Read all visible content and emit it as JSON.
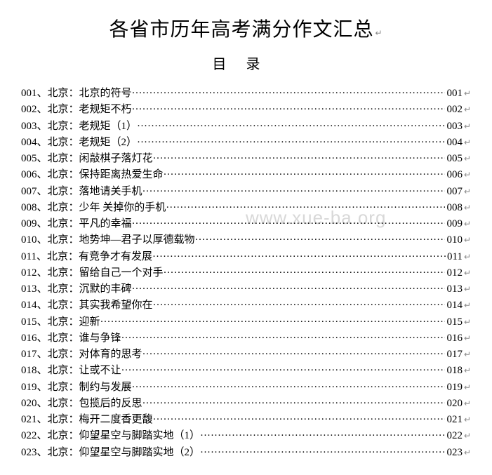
{
  "title": "各省市历年高考满分作文汇总",
  "subtitle": "目录",
  "watermark": "www.xue-ba.org",
  "line_end_mark": "↵",
  "colors": {
    "text": "#000000",
    "background": "#ffffff",
    "watermark": "#d8d8d8"
  },
  "typography": {
    "title_fontsize": 28,
    "subtitle_fontsize": 20,
    "entry_fontsize": 15,
    "font_family": "SimSun"
  },
  "entries": [
    {
      "num": "001",
      "province": "北京",
      "title": "北京的符号",
      "page": "001"
    },
    {
      "num": "002",
      "province": "北京",
      "title": "老规矩不朽",
      "page": "002"
    },
    {
      "num": "003",
      "province": "北京",
      "title": "老规矩（1）",
      "page": "003"
    },
    {
      "num": "004",
      "province": "北京",
      "title": "老规矩（2）",
      "page": "004"
    },
    {
      "num": "005",
      "province": "北京",
      "title": "闲敲棋子落灯花",
      "page": "005"
    },
    {
      "num": "006",
      "province": "北京",
      "title": "保持距离热爱生命",
      "page": "006"
    },
    {
      "num": "007",
      "province": "北京",
      "title": "落地请关手机",
      "page": "007"
    },
    {
      "num": "008",
      "province": "北京",
      "title": "少年 关掉你的手机",
      "page": "008"
    },
    {
      "num": "009",
      "province": "北京",
      "title": "平凡的幸福",
      "page": "009"
    },
    {
      "num": "010",
      "province": "北京",
      "title": "地势坤—君子以厚德载物",
      "page": "010"
    },
    {
      "num": "011",
      "province": "北京",
      "title": "有竞争才有发展",
      "page": "011"
    },
    {
      "num": "012",
      "province": "北京",
      "title": "留给自己一个对手",
      "page": "012"
    },
    {
      "num": "013",
      "province": "北京",
      "title": "沉默的丰碑",
      "page": "013"
    },
    {
      "num": "014",
      "province": "北京",
      "title": "其实我希望你在",
      "page": "014"
    },
    {
      "num": "015",
      "province": "北京",
      "title": "迎新",
      "page": "015"
    },
    {
      "num": "016",
      "province": "北京",
      "title": "谁与争锋",
      "page": "016"
    },
    {
      "num": "017",
      "province": "北京",
      "title": "对体育的思考",
      "page": "017"
    },
    {
      "num": "018",
      "province": "北京",
      "title": "让或不让",
      "page": "018"
    },
    {
      "num": "019",
      "province": "北京",
      "title": "制约与发展",
      "page": "019"
    },
    {
      "num": "020",
      "province": "北京",
      "title": "包揽后的反思",
      "page": "020"
    },
    {
      "num": "021",
      "province": "北京",
      "title": "梅开二度香更馥",
      "page": "021"
    },
    {
      "num": "022",
      "province": "北京",
      "title": "仰望星空与脚踏实地（1）",
      "page": "022"
    },
    {
      "num": "023",
      "province": "北京",
      "title": "仰望星空与脚踏实地（2）",
      "page": "023"
    }
  ]
}
